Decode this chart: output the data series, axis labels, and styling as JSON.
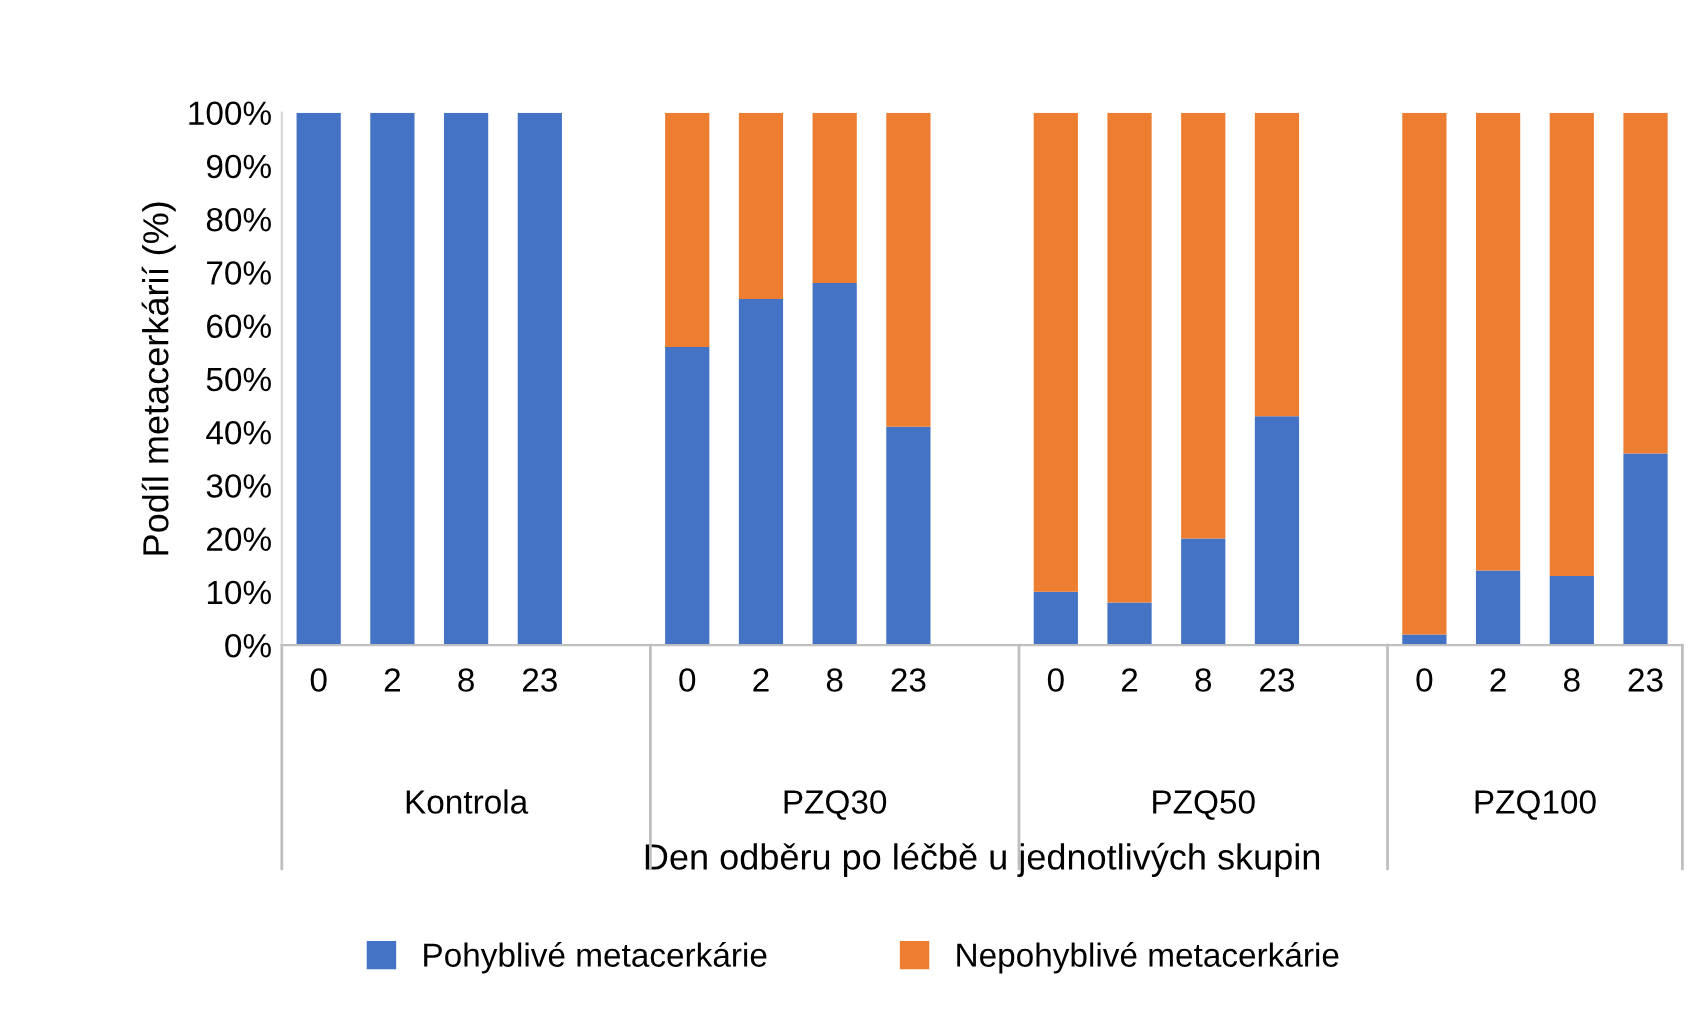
{
  "chart_data": {
    "type": "bar",
    "stacked": true,
    "categories": [
      "0",
      "2",
      "8",
      "23",
      null,
      "0",
      "2",
      "8",
      "23",
      null,
      "0",
      "2",
      "8",
      "23",
      null,
      "0",
      "2",
      "8",
      "23"
    ],
    "series": [
      {
        "name": "Pohyblivé metacerkárie",
        "color": "#4472c4",
        "values": [
          100,
          100,
          100,
          100,
          null,
          56,
          65,
          68,
          41,
          null,
          10,
          8,
          20,
          43,
          null,
          2,
          14,
          13,
          36
        ]
      },
      {
        "name": "Nepohyblivé metacerkárie",
        "color": "#ed7d31",
        "values": [
          0,
          0,
          0,
          0,
          null,
          44,
          35,
          32,
          59,
          null,
          90,
          92,
          80,
          57,
          null,
          98,
          86,
          87,
          64
        ]
      }
    ],
    "annotations": [
      "Kontrola",
      "PZQ30",
      "PZQ50",
      "PZQ100"
    ],
    "xlabel": "Den odběru po léčbě u jednotlivých skupin",
    "ylabel": "Podíl metacerkárií (%)",
    "ylim": [
      0,
      100
    ],
    "yticks": [
      {
        "value": 0,
        "label": "0%"
      },
      {
        "value": 10,
        "label": "10%"
      },
      {
        "value": 20,
        "label": "20%"
      },
      {
        "value": 30,
        "label": "30%"
      },
      {
        "value": 40,
        "label": "40%"
      },
      {
        "value": 50,
        "label": "50%"
      },
      {
        "value": 60,
        "label": "60%"
      },
      {
        "value": 70,
        "label": "70%"
      },
      {
        "value": 80,
        "label": "80%"
      },
      {
        "value": 90,
        "label": "90%"
      },
      {
        "value": 100,
        "label": "100%"
      }
    ],
    "grid": false,
    "legend": "bottom"
  }
}
